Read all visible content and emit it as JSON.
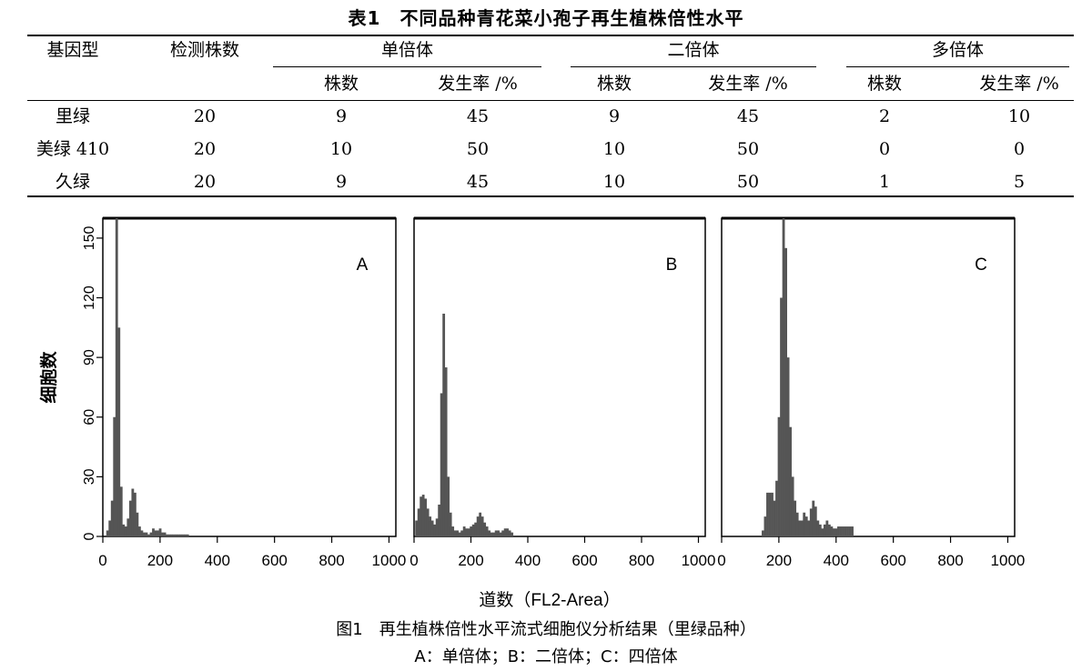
{
  "table": {
    "title": "表1　不同品种青花菜小孢子再生植株倍性水平",
    "headers": {
      "genotype": "基因型",
      "tested": "检测株数",
      "haploid": "单倍体",
      "diploid": "二倍体",
      "polyploid": "多倍体",
      "count": "株数",
      "rate": "发生率 /%"
    },
    "rows": [
      {
        "genotype": "里绿",
        "tested": "20",
        "h_count": "9",
        "h_rate": "45",
        "d_count": "9",
        "d_rate": "45",
        "p_count": "2",
        "p_rate": "10"
      },
      {
        "genotype": "美绿 410",
        "tested": "20",
        "h_count": "10",
        "h_rate": "50",
        "d_count": "10",
        "d_rate": "50",
        "p_count": "0",
        "p_rate": "0"
      },
      {
        "genotype": "久绿",
        "tested": "20",
        "h_count": "9",
        "h_rate": "45",
        "d_count": "10",
        "d_rate": "50",
        "p_count": "1",
        "p_rate": "5"
      }
    ]
  },
  "chart_data": [
    {
      "type": "bar",
      "panel_label": "A",
      "xlabel": "道数（FL2-Area）",
      "ylabel": "细胞数",
      "xlim": [
        0,
        1024
      ],
      "ylim": [
        0,
        160
      ],
      "xticks": [
        "0",
        "200",
        "400",
        "600",
        "800",
        "1000"
      ],
      "yticks": [
        "0",
        "30",
        "60",
        "90",
        "120",
        "150"
      ],
      "bin_width": 8,
      "x": [
        16,
        24,
        32,
        40,
        48,
        56,
        64,
        72,
        80,
        88,
        96,
        104,
        112,
        120,
        128,
        136,
        144,
        152,
        160,
        168,
        176,
        184,
        192,
        200,
        208,
        216,
        224,
        232,
        240,
        248,
        256,
        264,
        272,
        280,
        288,
        296
      ],
      "values": [
        3,
        8,
        18,
        60,
        165,
        105,
        25,
        6,
        5,
        9,
        18,
        24,
        22,
        12,
        5,
        3,
        2,
        2,
        1,
        2,
        4,
        3,
        3,
        4,
        2,
        2,
        1,
        1,
        1,
        1,
        1,
        1,
        1,
        1,
        1,
        1
      ]
    },
    {
      "type": "bar",
      "panel_label": "B",
      "xlim": [
        0,
        1024
      ],
      "ylim": [
        0,
        160
      ],
      "xticks": [
        "0",
        "200",
        "400",
        "600",
        "800",
        "1000"
      ],
      "yticks": [],
      "bin_width": 8,
      "x": [
        8,
        16,
        24,
        32,
        40,
        48,
        56,
        64,
        72,
        80,
        88,
        96,
        104,
        112,
        120,
        128,
        136,
        144,
        152,
        160,
        168,
        176,
        184,
        192,
        200,
        208,
        216,
        224,
        232,
        240,
        248,
        256,
        264,
        272,
        280,
        288,
        296,
        304,
        312,
        320,
        328,
        336,
        344
      ],
      "values": [
        8,
        14,
        20,
        21,
        19,
        14,
        10,
        8,
        6,
        9,
        16,
        72,
        112,
        85,
        30,
        12,
        5,
        3,
        3,
        2,
        3,
        5,
        4,
        4,
        5,
        6,
        7,
        10,
        12,
        10,
        7,
        5,
        3,
        2,
        2,
        3,
        3,
        2,
        3,
        4,
        4,
        3,
        2
      ]
    },
    {
      "type": "bar",
      "panel_label": "C",
      "xlim": [
        0,
        1024
      ],
      "ylim": [
        0,
        160
      ],
      "xticks": [
        "0",
        "200",
        "400",
        "600",
        "800",
        "1000"
      ],
      "yticks": [],
      "bin_width": 8,
      "x": [
        144,
        152,
        160,
        168,
        176,
        184,
        192,
        200,
        208,
        216,
        224,
        232,
        240,
        248,
        256,
        264,
        272,
        280,
        288,
        296,
        304,
        312,
        320,
        328,
        336,
        344,
        352,
        360,
        368,
        376,
        384,
        392,
        400,
        408,
        416,
        424,
        432,
        440,
        448,
        456
      ],
      "values": [
        3,
        10,
        22,
        22,
        22,
        18,
        28,
        60,
        120,
        165,
        145,
        90,
        55,
        30,
        18,
        12,
        8,
        8,
        12,
        10,
        8,
        14,
        18,
        15,
        8,
        6,
        4,
        6,
        8,
        6,
        5,
        4,
        4,
        5,
        5,
        5,
        5,
        5,
        5,
        5
      ]
    }
  ],
  "figure": {
    "caption": "图1　再生植株倍性水平流式细胞仪分析结果（里绿品种）",
    "legend": "A：单倍体；B：二倍体；C：四倍体"
  }
}
